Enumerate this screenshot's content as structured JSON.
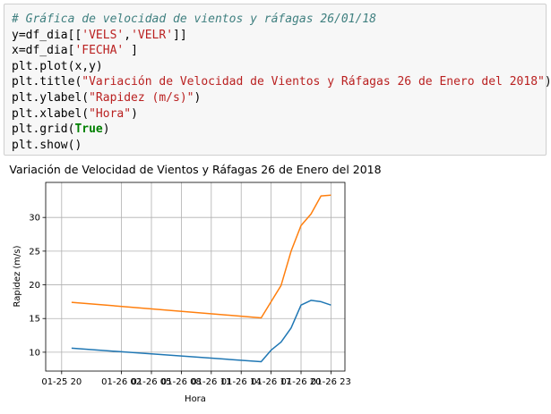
{
  "code": {
    "comment": "# Gráfica de velocidad de vientos y ráfagas 26/01/18",
    "line2_a": "y=df_dia[[",
    "line2_s1": "'VELS'",
    "line2_comma": ",",
    "line2_s2": "'VELR'",
    "line2_b": "]]",
    "line3_a": "x=df_dia[",
    "line3_s": "'FECHA'",
    "line3_b": " ]",
    "line4": "plt.plot(x,y)",
    "line5_a": "plt.title(",
    "line5_s": "\"Variación de Velocidad de Vientos y Ráfagas 26 de Enero del 2018\"",
    "line5_b": ")",
    "line6_a": "plt.ylabel(",
    "line6_s": "\"Rapidez (m/s)\"",
    "line6_b": ")",
    "line7_a": "plt.xlabel(",
    "line7_s": "\"Hora\"",
    "line7_b": ")",
    "line8_a": "plt.grid(",
    "line8_k": "True",
    "line8_b": ")",
    "line9": "plt.show()"
  },
  "chart_data": {
    "type": "line",
    "title": "Variación de Velocidad de Vientos y Ráfagas 26 de Enero del 2018",
    "xlabel": "Hora",
    "ylabel": "Rapidez (m/s)",
    "grid": true,
    "x_tick_labels": [
      "01-25 20",
      "01-26 02",
      "01-26 05",
      "01-26 08",
      "01-26 11",
      "01-26 14",
      "01-26 17",
      "01-26 20",
      "01-26 23"
    ],
    "x_tick_hours": [
      -4,
      2,
      5,
      8,
      11,
      14,
      17,
      20,
      23
    ],
    "y_ticks": [
      10,
      15,
      20,
      25,
      30
    ],
    "xlim_hours": [
      -5.6,
      24.4
    ],
    "ylim": [
      7.2,
      35.2
    ],
    "series": [
      {
        "color": "#1f77b4",
        "x_hours": [
          -3,
          16,
          17,
          18,
          19,
          20,
          21,
          22,
          23
        ],
        "values": [
          10.6,
          8.6,
          10.3,
          11.5,
          13.6,
          17.0,
          17.7,
          17.5,
          17.0
        ]
      },
      {
        "color": "#ff7f0e",
        "x_hours": [
          -3,
          16,
          17,
          18,
          19,
          20,
          21,
          22,
          23
        ],
        "values": [
          17.4,
          15.1,
          17.5,
          19.9,
          25.0,
          28.8,
          30.5,
          33.2,
          33.3
        ]
      }
    ]
  }
}
